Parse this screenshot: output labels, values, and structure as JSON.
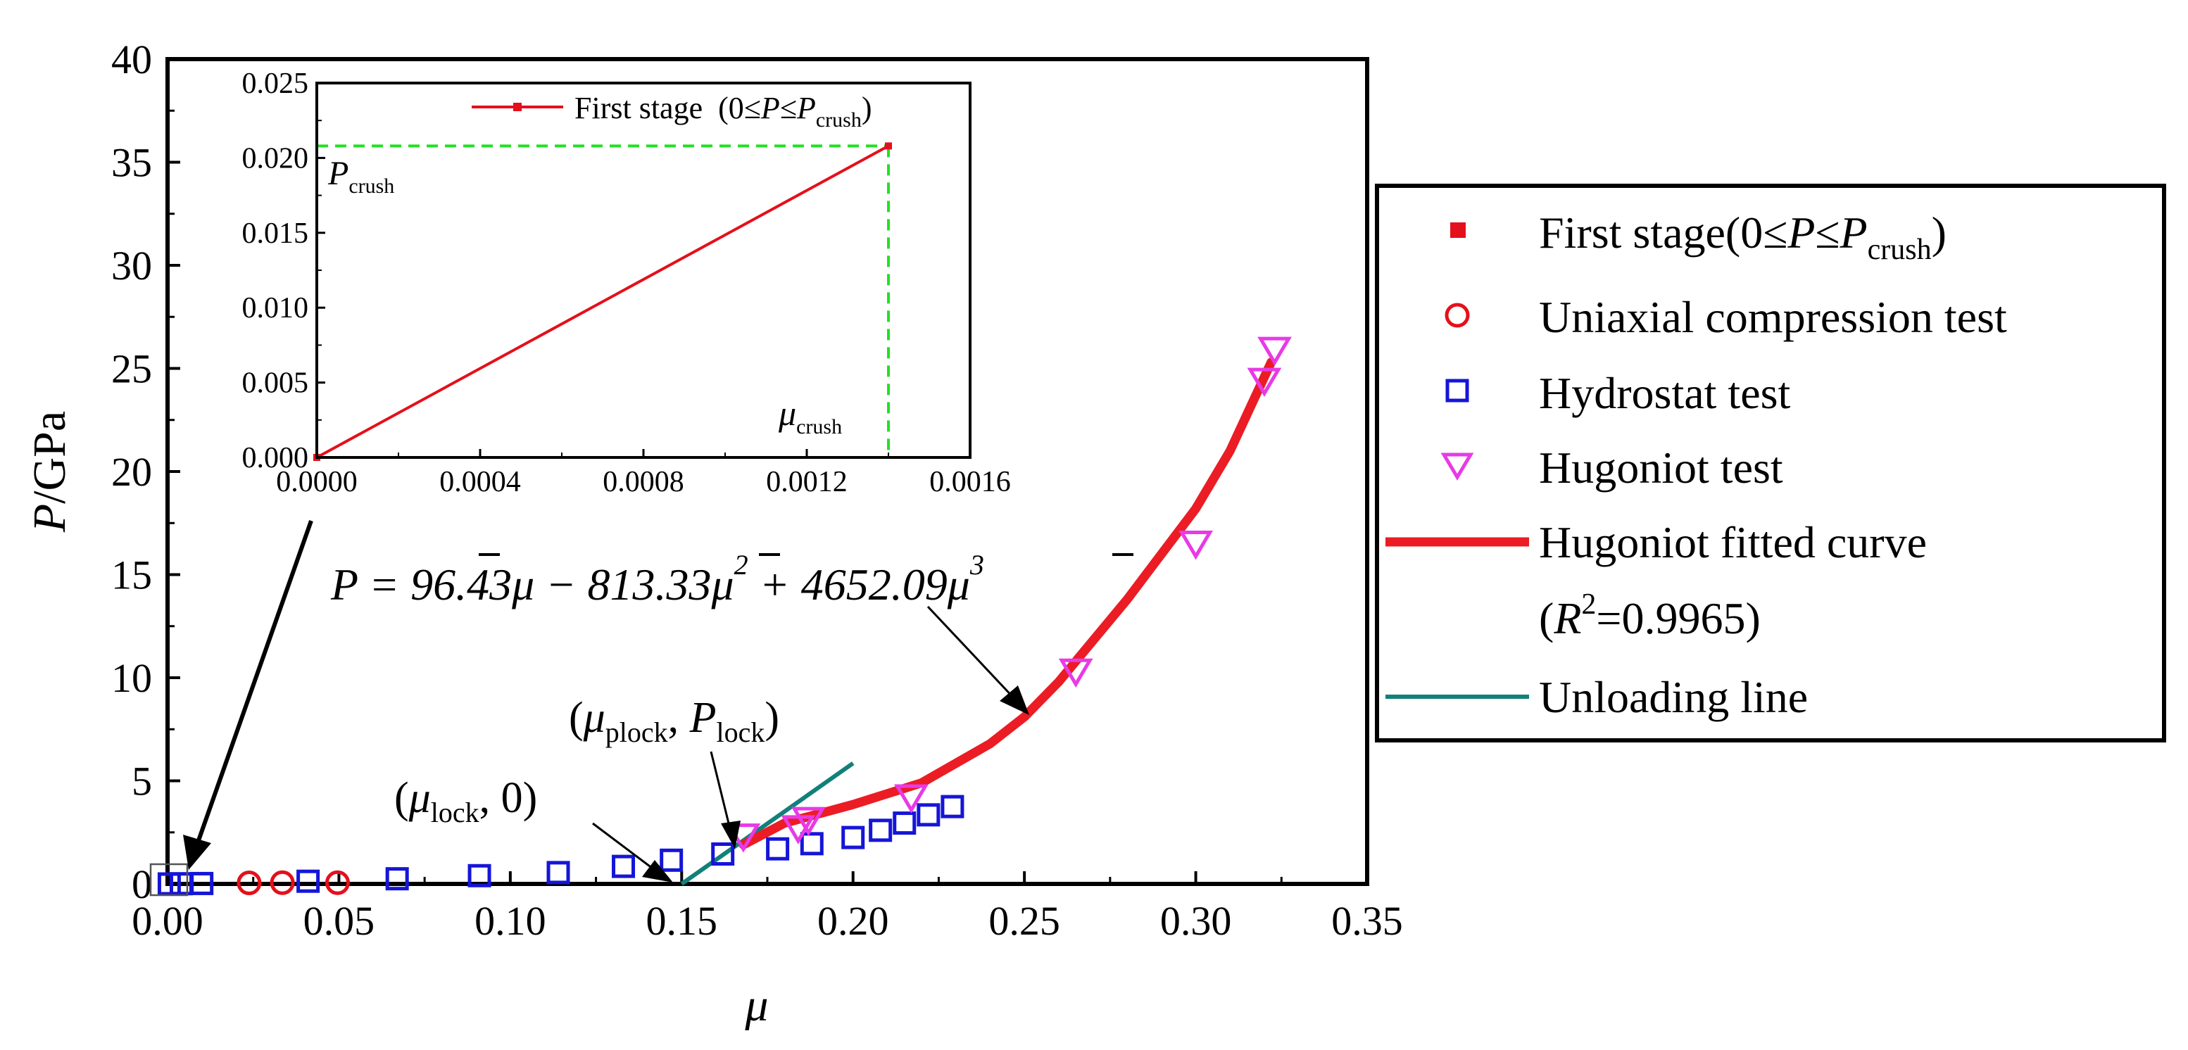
{
  "chart_data": {
    "type": "scatter",
    "xlabel": "μ",
    "ylabel_symbol": "P",
    "ylabel_unit": "/GPa",
    "xlim": [
      0.0,
      0.35
    ],
    "ylim": [
      0,
      40
    ],
    "x_ticks": [
      "0.00",
      "0.05",
      "0.10",
      "0.15",
      "0.20",
      "0.25",
      "0.30",
      "0.35"
    ],
    "y_ticks": [
      "0",
      "5",
      "10",
      "15",
      "20",
      "25",
      "30",
      "35",
      "40"
    ],
    "colors": {
      "first_stage": "#e4101b",
      "uniaxial": "#e4101b",
      "hydrostat": "#1515d8",
      "hugoniot": "#e83ae6",
      "fitted": "#ec1c24",
      "unloading": "#12807a",
      "crush_marker": "#22e022"
    },
    "series": [
      {
        "name": "Uniaxial compression test",
        "marker": "circle",
        "x": [
          0.0238,
          0.0335,
          0.0496
        ],
        "y": [
          0.05,
          0.06,
          0.06
        ]
      },
      {
        "name": "Hydrostat test",
        "marker": "square",
        "x": [
          0.0005,
          0.004,
          0.01,
          0.041,
          0.067,
          0.091,
          0.114,
          0.133,
          0.147,
          0.162,
          0.178,
          0.188,
          0.2,
          0.208,
          0.215,
          0.222,
          0.229
        ],
        "y": [
          0.0,
          0.01,
          0.02,
          0.13,
          0.25,
          0.4,
          0.55,
          0.85,
          1.15,
          1.45,
          1.7,
          1.95,
          2.25,
          2.6,
          2.95,
          3.35,
          3.75
        ]
      },
      {
        "name": "Hugoniot  test",
        "marker": "triangle-down",
        "x": [
          0.168,
          0.184,
          0.187,
          0.217,
          0.265,
          0.3,
          0.32,
          0.323
        ],
        "y": [
          2.3,
          2.7,
          3.1,
          4.2,
          10.3,
          16.5,
          24.4,
          25.9
        ]
      },
      {
        "name": "Hugoniot  fitted curve",
        "marker": "line",
        "x": [
          0.168,
          0.18,
          0.2,
          0.22,
          0.24,
          0.25,
          0.26,
          0.28,
          0.3,
          0.31,
          0.322
        ],
        "y": [
          1.9,
          2.95,
          3.85,
          4.9,
          6.8,
          8.1,
          9.8,
          13.8,
          18.2,
          21.0,
          25.3
        ]
      },
      {
        "name": "Unloading line",
        "marker": "line",
        "x": [
          0.15,
          0.2
        ],
        "y": [
          0.0,
          5.85
        ]
      }
    ],
    "inset": {
      "type": "line",
      "legend": "First stage",
      "legend_cond": "(0≤",
      "xlim": [
        0.0,
        0.0016
      ],
      "ylim": [
        0.0,
        0.025
      ],
      "x_ticks": [
        "0.0000",
        "0.0004",
        "0.0008",
        "0.0012",
        "0.0016"
      ],
      "y_ticks": [
        "0.000",
        "0.005",
        "0.010",
        "0.015",
        "0.020",
        "0.025"
      ],
      "x": [
        0.0,
        0.0014
      ],
      "y": [
        0.0,
        0.0208
      ],
      "p_crush_label": "P",
      "p_crush_sub": "crush",
      "mu_crush_label": "μ",
      "mu_crush_sub": "crush"
    },
    "legend": {
      "first_stage": "First stage(0≤",
      "uniaxial": "Uniaxial compression test",
      "hydrostat": "Hydrostat test",
      "hugoniot": "Hugoniot  test",
      "fitted": "Hugoniot  fitted curve",
      "r2_open": "(",
      "r2_r": "R",
      "r2_sup": "2",
      "r2_val": "=0.9965)",
      "unloading": "Unloading line",
      "sym_P": "P",
      "sym_le": "≤",
      "sym_sub": "crush",
      "sym_close": ")"
    },
    "annotations": {
      "equation": {
        "lhs": "P = 96.43",
        "mu": "μ",
        "t2": " − 813.33",
        "t3": " + 4652.09",
        "sup2": "2",
        "sup3": "3"
      },
      "plock": {
        "open": "(",
        "mu": "μ",
        "sub1": "plock",
        "mid": ", ",
        "P": "P",
        "sub2": "lock",
        "close": ")"
      },
      "lock": {
        "open": "(",
        "mu": "μ",
        "sub": "lock",
        "rest": ", 0)"
      }
    }
  }
}
